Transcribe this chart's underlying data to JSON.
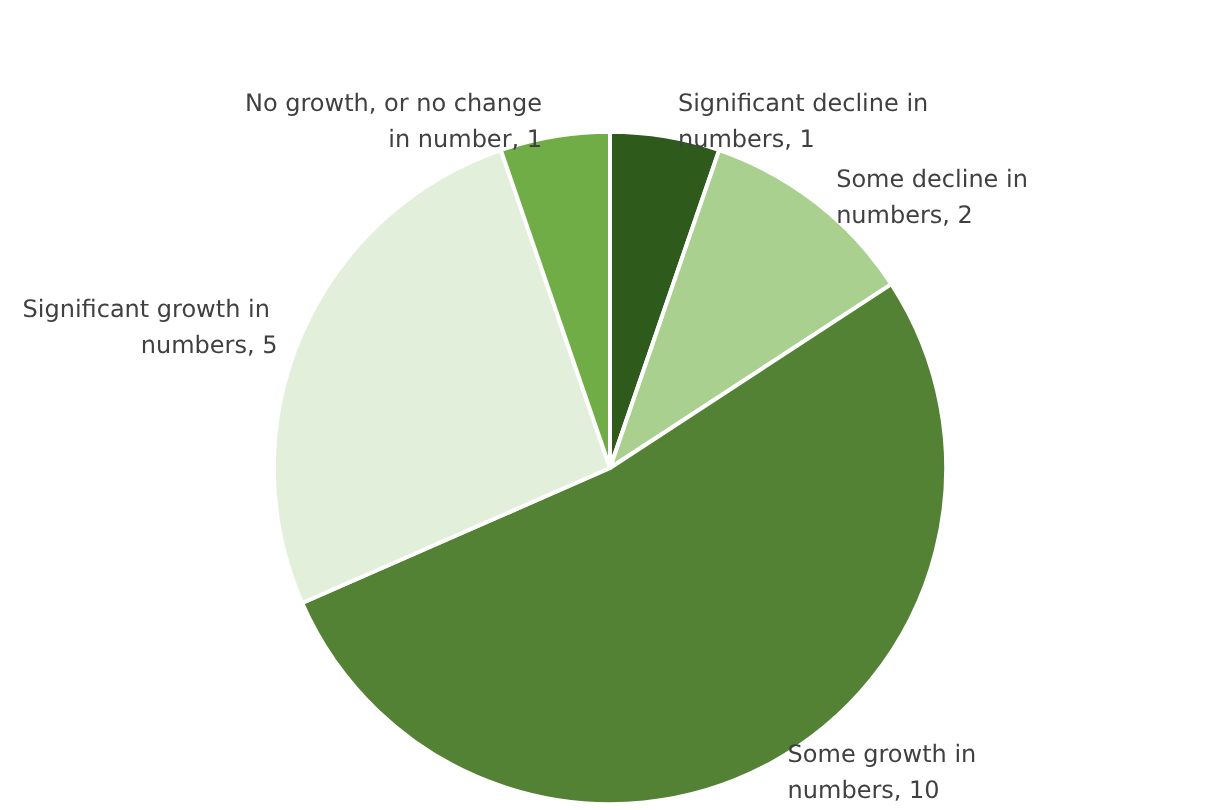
{
  "chart_data": {
    "type": "pie",
    "categories": [
      "Significant decline in numbers, 1",
      "Some decline in numbers, 2",
      "Some growth in numbers, 10",
      "Significant growth in numbers, 5",
      "No growth, or no change in number, 1"
    ],
    "values": [
      1,
      2,
      10,
      5,
      1
    ],
    "colors": [
      "#2e5a1c",
      "#a9d08e",
      "#548235",
      "#e2efda",
      "#70ad47"
    ]
  }
}
